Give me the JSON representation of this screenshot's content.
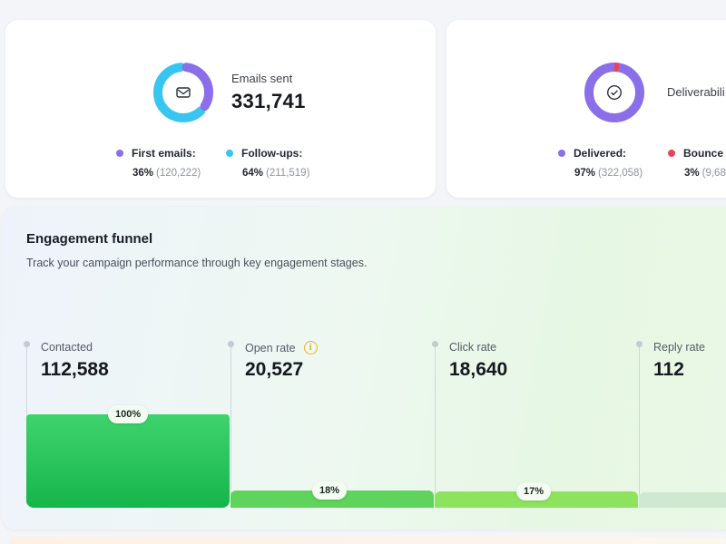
{
  "emails_card": {
    "label": "Emails sent",
    "value": "331,741",
    "icon": "mail-icon",
    "colors": {
      "first": "#8b6fe8",
      "followups": "#38c5ef"
    },
    "share": {
      "first": 0.36,
      "followups": 0.64
    },
    "legend": [
      {
        "label": "First emails:",
        "pct": "36%",
        "count": "(120,222)",
        "color": "#8b6fe8"
      },
      {
        "label": "Follow-ups:",
        "pct": "64%",
        "count": "(211,519)",
        "color": "#38c5ef"
      }
    ]
  },
  "deliverability_card": {
    "label": "Deliverabili",
    "icon": "check-circle-icon",
    "colors": {
      "delivered": "#8b6fe8",
      "bounced": "#e8455a"
    },
    "share": {
      "delivered": 0.97,
      "bounced": 0.03
    },
    "legend": [
      {
        "label": "Delivered:",
        "pct": "97%",
        "count": "(322,058)",
        "color": "#8b6fe8"
      },
      {
        "label": "Bounce",
        "pct": "3%",
        "count": "(9,68",
        "color": "#e8455a"
      }
    ]
  },
  "funnel": {
    "title": "Engagement funnel",
    "subtitle": "Track your campaign performance through key engagement stages.",
    "stages": [
      {
        "label": "Contacted",
        "value": "112,588",
        "percent_label": "100%",
        "fill": 1.0,
        "color": "#23c25a"
      },
      {
        "label": "Open rate",
        "value": "20,527",
        "percent_label": "18%",
        "fill": 0.18,
        "color": "#5fd35c",
        "info_icon": "info-icon"
      },
      {
        "label": "Click rate",
        "value": "18,640",
        "percent_label": "17%",
        "fill": 0.17,
        "color": "#8ee35e"
      },
      {
        "label": "Reply rate",
        "value": "112",
        "percent_label": "",
        "fill": 0.001,
        "color": "#cfe9d0"
      }
    ]
  }
}
